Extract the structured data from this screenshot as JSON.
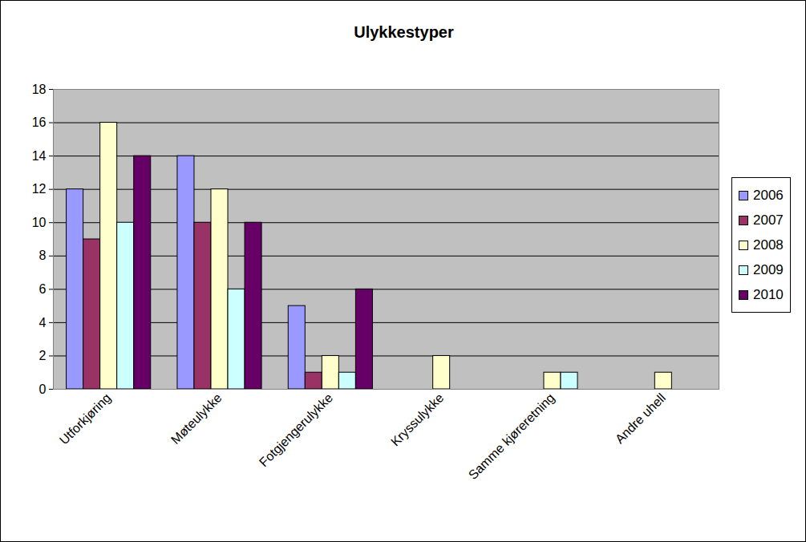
{
  "chart_data": {
    "type": "bar",
    "title": "Ulykkestyper",
    "categories": [
      "Utforkjøring",
      "Møteulykke",
      "Fotgjengerulykke",
      "Kryssulykke",
      "Samme kjøreretning",
      "Andre uhell"
    ],
    "series": [
      {
        "name": "2006",
        "color": "#9999ff",
        "values": [
          12,
          14,
          5,
          null,
          null,
          null
        ]
      },
      {
        "name": "2007",
        "color": "#993366",
        "values": [
          9,
          10,
          1,
          null,
          null,
          null
        ]
      },
      {
        "name": "2008",
        "color": "#ffffcc",
        "values": [
          16,
          12,
          2,
          2,
          1,
          1
        ]
      },
      {
        "name": "2009",
        "color": "#ccffff",
        "values": [
          10,
          6,
          1,
          null,
          1,
          null
        ]
      },
      {
        "name": "2010",
        "color": "#660066",
        "values": [
          14,
          10,
          6,
          null,
          null,
          null
        ]
      }
    ],
    "ylim": [
      0,
      18
    ],
    "yticks": [
      0,
      2,
      4,
      6,
      8,
      10,
      12,
      14,
      16,
      18
    ],
    "grid": true,
    "legend": "right"
  }
}
